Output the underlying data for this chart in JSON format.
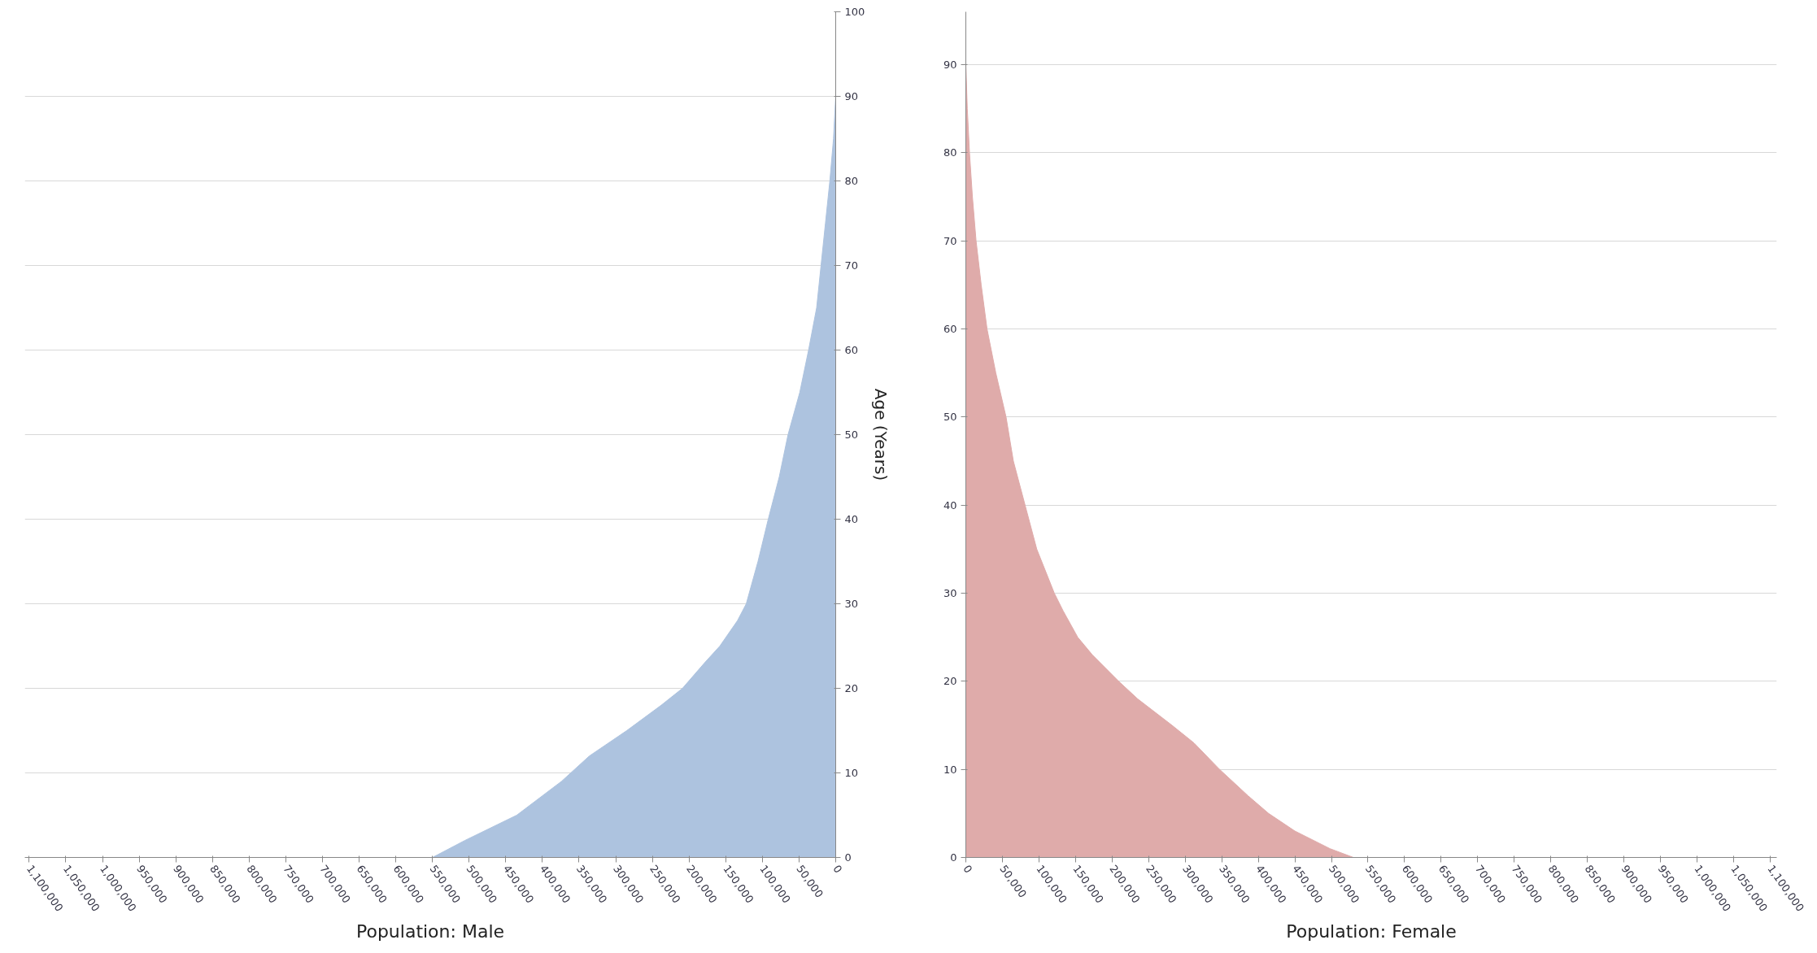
{
  "chart_data": [
    {
      "type": "area",
      "orientation": "horizontal",
      "xlabel": "Population: Male",
      "ylabel": "Age (Years)",
      "x": [
        0,
        2,
        5,
        9,
        12,
        15,
        18,
        20,
        23,
        25,
        28,
        30,
        35,
        40,
        45,
        50,
        55,
        60,
        65,
        70,
        75,
        80,
        85,
        90
      ],
      "series": [
        {
          "color": "#adc3df",
          "values": [
            550000,
            506000,
            435000,
            374000,
            336000,
            285000,
            238000,
            209000,
            179000,
            158000,
            134000,
            122000,
            106000,
            92000,
            77000,
            65000,
            49000,
            37000,
            26000,
            20000,
            14000,
            8000,
            3000,
            0
          ]
        }
      ],
      "xlim": [
        1106000,
        0
      ],
      "ylim": [
        0,
        100
      ],
      "xticks": [
        0,
        {
          "value": 50000,
          "label": "50,000"
        },
        {
          "value": 100000,
          "label": "100,000"
        },
        {
          "value": 150000,
          "label": "150,000"
        },
        {
          "value": 200000,
          "label": "200,000"
        },
        {
          "value": 250000,
          "label": "250,000"
        },
        {
          "value": 300000,
          "label": "300,000"
        },
        {
          "value": 350000,
          "label": "350,000"
        },
        {
          "value": 400000,
          "label": "400,000"
        },
        {
          "value": 450000,
          "label": "450,000"
        },
        {
          "value": 500000,
          "label": "500,000"
        },
        {
          "value": 550000,
          "label": "550,000"
        },
        {
          "value": 600000,
          "label": "600,000"
        },
        {
          "value": 650000,
          "label": "650,000"
        },
        {
          "value": 700000,
          "label": "700,000"
        },
        {
          "value": 750000,
          "label": "750,000"
        },
        {
          "value": 800000,
          "label": "800,000"
        },
        {
          "value": 850000,
          "label": "850,000"
        },
        {
          "value": 900000,
          "label": "900,000"
        },
        {
          "value": 950000,
          "label": "950,000"
        },
        {
          "value": 1000000,
          "label": "1,000,000"
        },
        {
          "value": 1050000,
          "label": "1,050,000"
        },
        {
          "value": 1100000,
          "label": "1,100,000"
        }
      ],
      "yticks": [
        0,
        10,
        20,
        30,
        40,
        50,
        60,
        70,
        80,
        90,
        100
      ],
      "grid": "y"
    },
    {
      "type": "area",
      "orientation": "horizontal",
      "xlabel": "Population: Female",
      "x": [
        0,
        1,
        3,
        5,
        7,
        10,
        13,
        15,
        18,
        20,
        23,
        25,
        28,
        30,
        35,
        40,
        45,
        50,
        55,
        60,
        65,
        70,
        75,
        80,
        85,
        90
      ],
      "series": [
        {
          "color": "#dfabaa",
          "values": [
            530000,
            498000,
            450000,
            414000,
            386000,
            347000,
            312000,
            282000,
            235000,
            209000,
            173000,
            153000,
            133000,
            121000,
            97000,
            81000,
            65000,
            55000,
            41000,
            29000,
            21000,
            14000,
            9000,
            5000,
            2000,
            0
          ]
        }
      ],
      "xlim": [
        0,
        1109000
      ],
      "ylim": [
        0,
        96
      ],
      "xticks": [
        0,
        {
          "value": 50000,
          "label": "50,000"
        },
        {
          "value": 100000,
          "label": "100,000"
        },
        {
          "value": 150000,
          "label": "150,000"
        },
        {
          "value": 200000,
          "label": "200,000"
        },
        {
          "value": 250000,
          "label": "250,000"
        },
        {
          "value": 300000,
          "label": "300,000"
        },
        {
          "value": 350000,
          "label": "350,000"
        },
        {
          "value": 400000,
          "label": "400,000"
        },
        {
          "value": 450000,
          "label": "450,000"
        },
        {
          "value": 500000,
          "label": "500,000"
        },
        {
          "value": 550000,
          "label": "550,000"
        },
        {
          "value": 600000,
          "label": "600,000"
        },
        {
          "value": 650000,
          "label": "650,000"
        },
        {
          "value": 700000,
          "label": "700,000"
        },
        {
          "value": 750000,
          "label": "750,000"
        },
        {
          "value": 800000,
          "label": "800,000"
        },
        {
          "value": 850000,
          "label": "850,000"
        },
        {
          "value": 900000,
          "label": "900,000"
        },
        {
          "value": 950000,
          "label": "950,000"
        },
        {
          "value": 1000000,
          "label": "1,000,000"
        },
        {
          "value": 1050000,
          "label": "1,050,000"
        },
        {
          "value": 1100000,
          "label": "1,100,000"
        }
      ],
      "yticks": [
        0,
        10,
        20,
        30,
        40,
        50,
        60,
        70,
        80,
        90
      ],
      "grid": "y"
    }
  ]
}
